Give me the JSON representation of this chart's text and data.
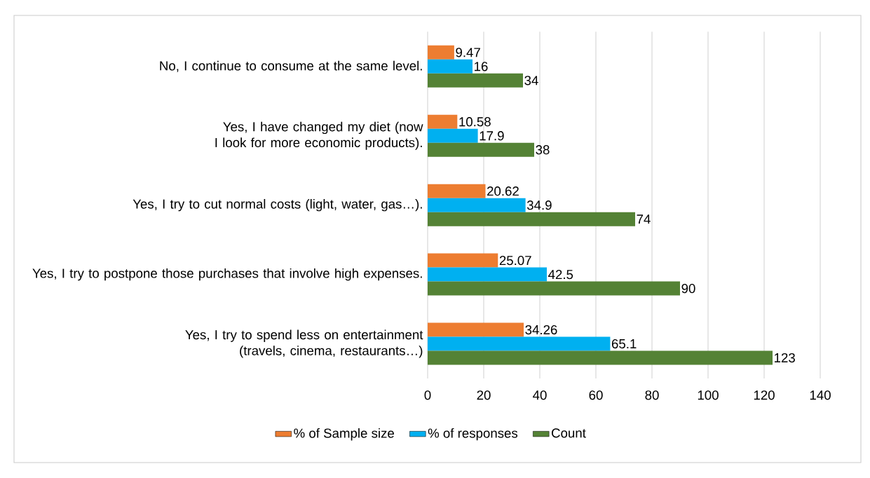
{
  "chart_data": {
    "type": "bar",
    "orientation": "horizontal",
    "categories": [
      "No, I continue to consume at the same level.",
      "Yes, I have changed my diet (now I look for more economic products).",
      "Yes, I try to cut normal costs (light, water, gas…).",
      "Yes, I try to postpone those purchases that involve high expenses.",
      "Yes, I try to spend less on entertainment (travels, cinema, restaurants…)"
    ],
    "series": [
      {
        "name": "% of Sample size",
        "color": "#ed7d31",
        "values": [
          9.47,
          10.58,
          20.62,
          25.07,
          34.26
        ]
      },
      {
        "name": "% of responses",
        "color": "#00b0f0",
        "values": [
          16,
          17.9,
          34.9,
          42.5,
          65.1
        ]
      },
      {
        "name": "Count",
        "color": "#548235",
        "values": [
          34,
          38,
          74,
          90,
          123
        ]
      }
    ],
    "xlim": [
      0,
      140
    ],
    "xticks": [
      0,
      20,
      40,
      60,
      80,
      100,
      120,
      140
    ],
    "grid": "x",
    "legend": "bottom",
    "data_labels": true
  }
}
